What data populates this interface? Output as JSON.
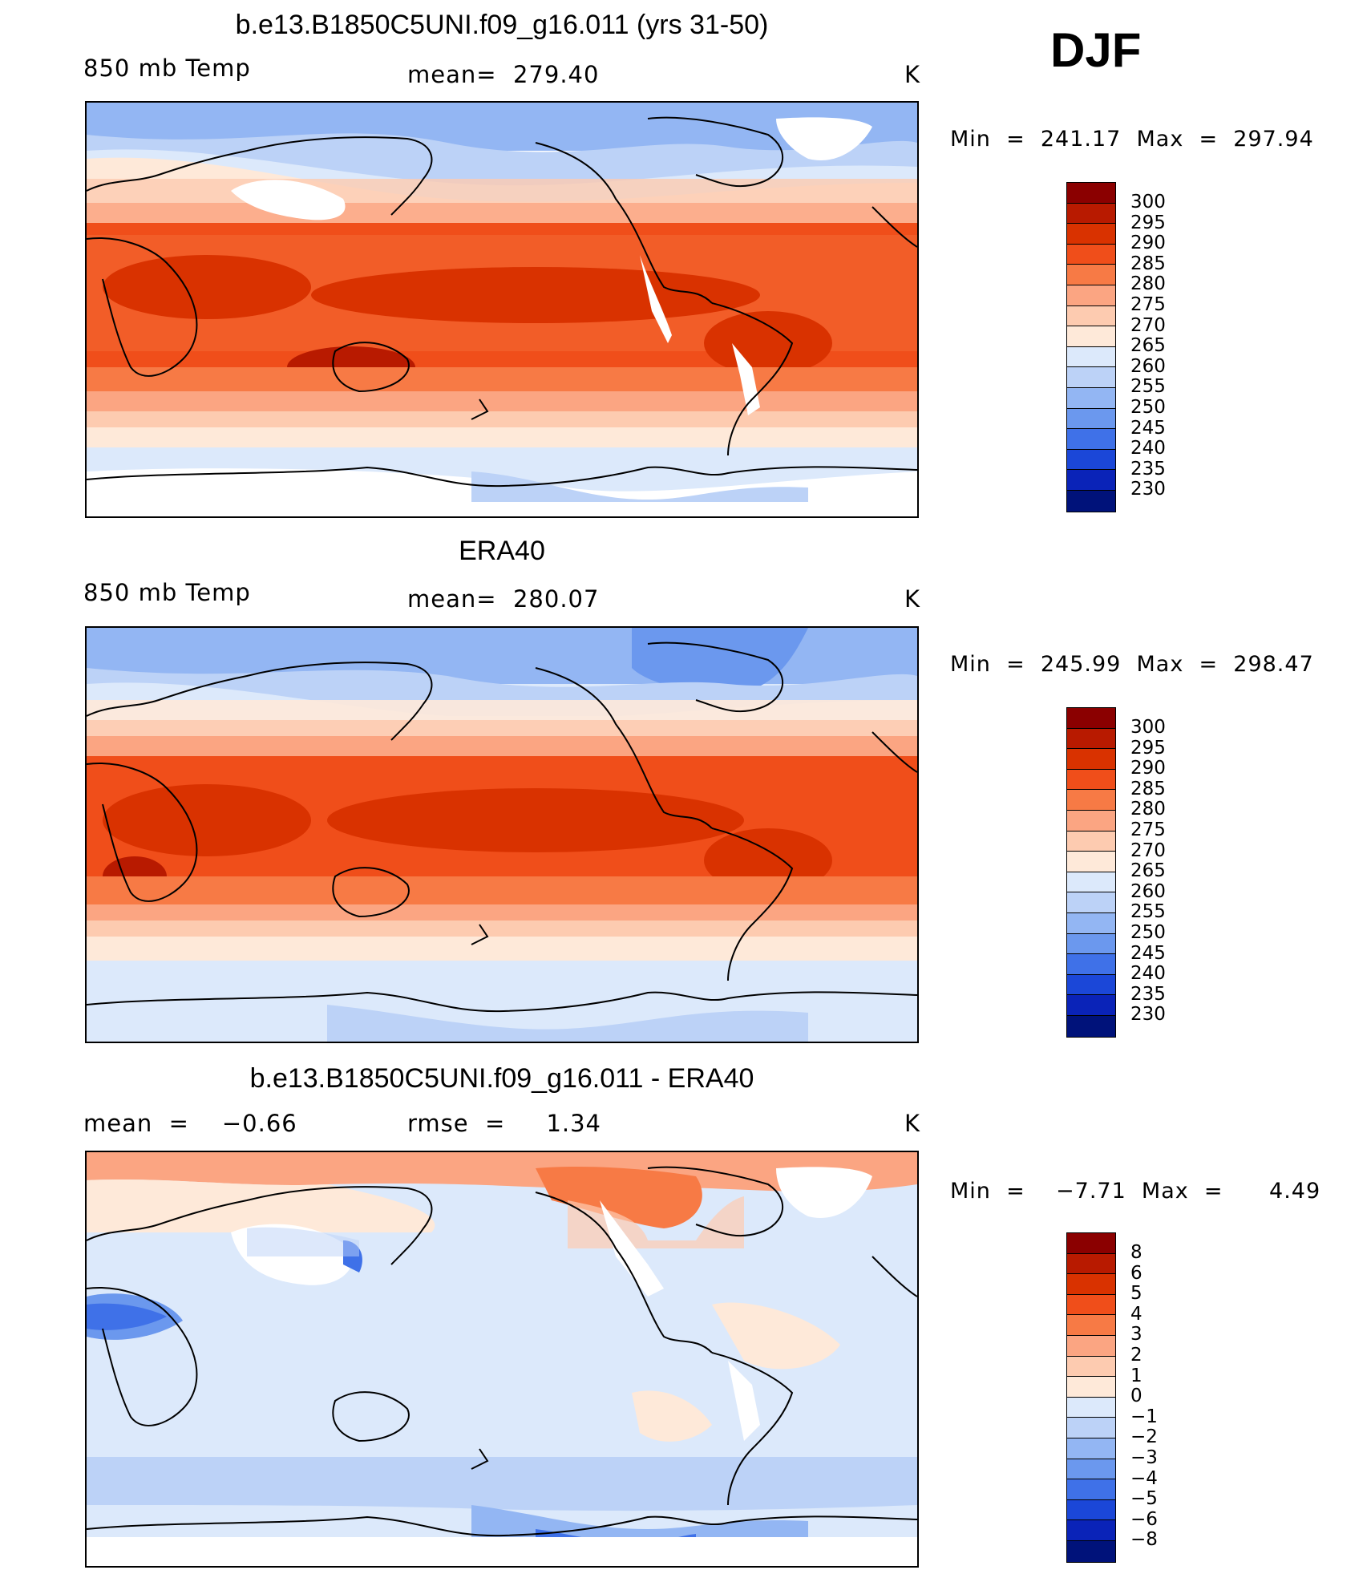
{
  "season": "DJF",
  "panels": [
    {
      "title": "b.e13.B1850C5UNI.f09_g16.011 (yrs 31-50)",
      "left_label": "850 mb Temp",
      "mid_label": "mean=  279.40",
      "units": "K",
      "minmax": "Min  =  241.17  Max  =  297.94",
      "colorbar_labels": [
        "300",
        "295",
        "290",
        "285",
        "280",
        "275",
        "270",
        "265",
        "260",
        "255",
        "250",
        "245",
        "240",
        "235",
        "230"
      ]
    },
    {
      "title": "ERA40",
      "left_label": "850 mb Temp",
      "mid_label": "mean=  280.07",
      "units": "K",
      "minmax": "Min  =  245.99  Max  =  298.47",
      "colorbar_labels": [
        "300",
        "295",
        "290",
        "285",
        "280",
        "275",
        "270",
        "265",
        "260",
        "255",
        "250",
        "245",
        "240",
        "235",
        "230"
      ]
    },
    {
      "title": "b.e13.B1850C5UNI.f09_g16.011 - ERA40",
      "left_label": "mean  =    −0.66",
      "mid_label": "rmse  =     1.34",
      "units": "K",
      "minmax": "Min  =    −7.71  Max  =      4.49",
      "colorbar_labels": [
        "8",
        "6",
        "5",
        "4",
        "3",
        "2",
        "1",
        "0",
        "−1",
        "−2",
        "−3",
        "−4",
        "−5",
        "−6",
        "−8"
      ]
    }
  ],
  "colors": {
    "temp_scale": [
      "#8b0000",
      "#b81a00",
      "#d93200",
      "#f04e1a",
      "#f77a45",
      "#fba582",
      "#fdcbb0",
      "#fee9d9",
      "#dce9fb",
      "#bcd2f7",
      "#93b6f3",
      "#6b98ee",
      "#3f71e8",
      "#1b47d8",
      "#0a23b8",
      "#00127a"
    ],
    "diff_scale": [
      "#8b0000",
      "#b81a00",
      "#d93200",
      "#f04e1a",
      "#f77a45",
      "#fba582",
      "#fdcbb0",
      "#fee9d9",
      "#dce9fb",
      "#bcd2f7",
      "#93b6f3",
      "#6b98ee",
      "#3f71e8",
      "#1b47d8",
      "#0a23b8",
      "#00127a"
    ]
  }
}
